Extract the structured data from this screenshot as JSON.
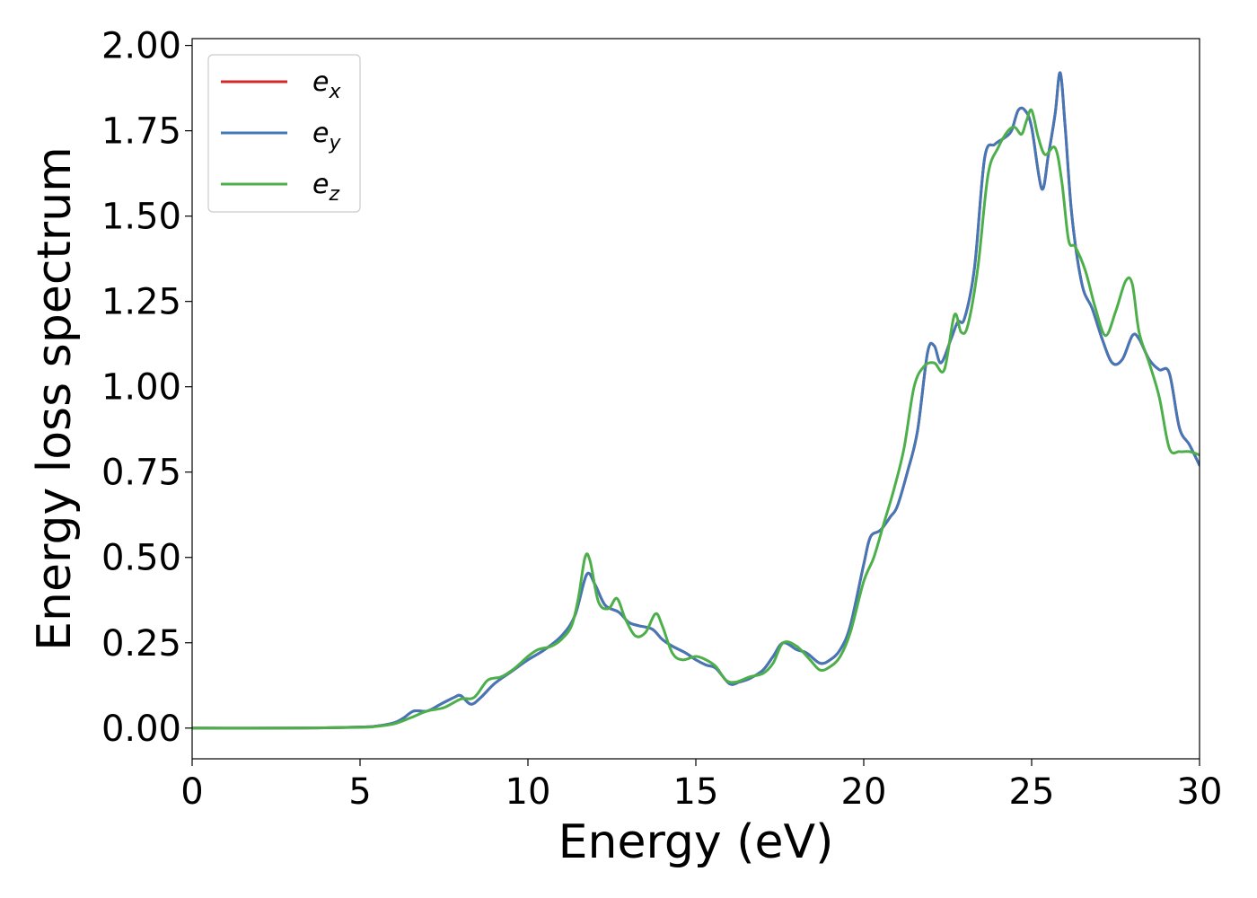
{
  "chart_data": {
    "type": "line",
    "xlabel": "Energy (eV)",
    "ylabel": "Energy loss spectrum",
    "xlim": [
      0,
      30
    ],
    "ylim": [
      -0.09,
      2.02
    ],
    "xticks": [
      0,
      5,
      10,
      15,
      20,
      25,
      30
    ],
    "xtick_labels": [
      "0",
      "5",
      "10",
      "15",
      "20",
      "25",
      "30"
    ],
    "yticks": [
      0.0,
      0.25,
      0.5,
      0.75,
      1.0,
      1.25,
      1.5,
      1.75,
      2.0
    ],
    "ytick_labels": [
      "0.00",
      "0.25",
      "0.50",
      "0.75",
      "1.00",
      "1.25",
      "1.50",
      "1.75",
      "2.00"
    ],
    "grid": false,
    "legend_position": "top-left",
    "series": [
      {
        "name": "e",
        "subscript": "x",
        "color": "#d62728",
        "x": [
          0,
          3,
          5,
          5.5,
          6,
          6.3,
          6.6,
          7.0,
          7.4,
          7.8,
          8.0,
          8.3,
          8.6,
          9.0,
          9.5,
          10.0,
          10.5,
          11.0,
          11.4,
          11.75,
          12.0,
          12.3,
          12.7,
          13.0,
          13.3,
          13.7,
          14.0,
          14.3,
          14.7,
          15.0,
          15.3,
          15.6,
          16.0,
          16.3,
          16.6,
          17.0,
          17.3,
          17.6,
          18.0,
          18.3,
          18.7,
          19.0,
          19.3,
          19.6,
          20.0,
          20.2,
          20.5,
          20.8,
          21.0,
          21.3,
          21.6,
          21.9,
          22.1,
          22.3,
          22.6,
          22.8,
          23.0,
          23.3,
          23.6,
          23.9,
          24.2,
          24.4,
          24.6,
          24.8,
          25.0,
          25.3,
          25.5,
          25.7,
          25.85,
          26.0,
          26.2,
          26.5,
          26.8,
          27.1,
          27.4,
          27.7,
          28.0,
          28.2,
          28.5,
          28.8,
          29.1,
          29.4,
          29.7,
          30.0
        ],
        "values": [
          0.0,
          0.0,
          0.003,
          0.006,
          0.015,
          0.03,
          0.05,
          0.05,
          0.07,
          0.09,
          0.095,
          0.07,
          0.09,
          0.13,
          0.165,
          0.2,
          0.23,
          0.27,
          0.33,
          0.45,
          0.42,
          0.36,
          0.34,
          0.31,
          0.3,
          0.29,
          0.26,
          0.24,
          0.22,
          0.2,
          0.185,
          0.175,
          0.13,
          0.135,
          0.145,
          0.17,
          0.21,
          0.25,
          0.23,
          0.22,
          0.19,
          0.2,
          0.23,
          0.3,
          0.48,
          0.56,
          0.58,
          0.62,
          0.65,
          0.75,
          0.87,
          1.1,
          1.12,
          1.07,
          1.14,
          1.19,
          1.2,
          1.35,
          1.67,
          1.71,
          1.73,
          1.75,
          1.81,
          1.81,
          1.76,
          1.58,
          1.68,
          1.8,
          1.92,
          1.76,
          1.5,
          1.3,
          1.23,
          1.14,
          1.07,
          1.08,
          1.15,
          1.14,
          1.08,
          1.05,
          1.04,
          0.88,
          0.83,
          0.77
        ]
      },
      {
        "name": "e",
        "subscript": "y",
        "color": "#4477b8",
        "x": [
          0,
          3,
          5,
          5.5,
          6,
          6.3,
          6.6,
          7.0,
          7.4,
          7.8,
          8.0,
          8.3,
          8.6,
          9.0,
          9.5,
          10.0,
          10.5,
          11.0,
          11.4,
          11.75,
          12.0,
          12.3,
          12.7,
          13.0,
          13.3,
          13.7,
          14.0,
          14.3,
          14.7,
          15.0,
          15.3,
          15.6,
          16.0,
          16.3,
          16.6,
          17.0,
          17.3,
          17.6,
          18.0,
          18.3,
          18.7,
          19.0,
          19.3,
          19.6,
          20.0,
          20.2,
          20.5,
          20.8,
          21.0,
          21.3,
          21.6,
          21.9,
          22.1,
          22.3,
          22.6,
          22.8,
          23.0,
          23.3,
          23.6,
          23.9,
          24.2,
          24.4,
          24.6,
          24.8,
          25.0,
          25.3,
          25.5,
          25.7,
          25.85,
          26.0,
          26.2,
          26.5,
          26.8,
          27.1,
          27.4,
          27.7,
          28.0,
          28.2,
          28.5,
          28.8,
          29.1,
          29.4,
          29.7,
          30.0
        ],
        "values": [
          0.0,
          0.0,
          0.003,
          0.006,
          0.015,
          0.03,
          0.05,
          0.05,
          0.07,
          0.09,
          0.095,
          0.07,
          0.09,
          0.13,
          0.165,
          0.2,
          0.23,
          0.27,
          0.33,
          0.45,
          0.42,
          0.36,
          0.34,
          0.31,
          0.3,
          0.29,
          0.26,
          0.24,
          0.22,
          0.2,
          0.185,
          0.175,
          0.13,
          0.135,
          0.145,
          0.17,
          0.21,
          0.25,
          0.23,
          0.22,
          0.19,
          0.2,
          0.23,
          0.3,
          0.48,
          0.56,
          0.58,
          0.62,
          0.65,
          0.75,
          0.87,
          1.1,
          1.12,
          1.07,
          1.14,
          1.19,
          1.2,
          1.35,
          1.67,
          1.71,
          1.73,
          1.75,
          1.81,
          1.81,
          1.76,
          1.58,
          1.68,
          1.8,
          1.92,
          1.76,
          1.5,
          1.3,
          1.23,
          1.14,
          1.07,
          1.08,
          1.15,
          1.14,
          1.08,
          1.05,
          1.04,
          0.88,
          0.83,
          0.77
        ]
      },
      {
        "name": "e",
        "subscript": "z",
        "color": "#4daf4a",
        "x": [
          0,
          3,
          5,
          5.5,
          6,
          6.5,
          7.0,
          7.5,
          8.0,
          8.4,
          8.8,
          9.2,
          9.6,
          10.0,
          10.3,
          10.7,
          11.0,
          11.3,
          11.5,
          11.7,
          11.85,
          12.1,
          12.4,
          12.65,
          12.9,
          13.2,
          13.5,
          13.8,
          14.0,
          14.3,
          14.6,
          15.0,
          15.3,
          15.6,
          15.9,
          16.2,
          16.6,
          17.0,
          17.3,
          17.6,
          18.0,
          18.4,
          18.7,
          19.0,
          19.3,
          19.6,
          20.0,
          20.3,
          20.6,
          20.9,
          21.2,
          21.5,
          21.8,
          22.1,
          22.4,
          22.7,
          22.9,
          23.1,
          23.4,
          23.7,
          24.0,
          24.3,
          24.5,
          24.7,
          24.85,
          25.0,
          25.2,
          25.4,
          25.7,
          25.9,
          26.1,
          26.3,
          26.6,
          26.9,
          27.2,
          27.5,
          27.8,
          28.0,
          28.2,
          28.5,
          28.8,
          29.1,
          29.4,
          29.7,
          30.0
        ],
        "values": [
          0.0,
          0.0,
          0.002,
          0.005,
          0.012,
          0.03,
          0.05,
          0.06,
          0.085,
          0.09,
          0.14,
          0.15,
          0.175,
          0.21,
          0.23,
          0.24,
          0.26,
          0.3,
          0.38,
          0.5,
          0.49,
          0.37,
          0.35,
          0.38,
          0.32,
          0.27,
          0.28,
          0.335,
          0.3,
          0.22,
          0.2,
          0.21,
          0.2,
          0.18,
          0.14,
          0.135,
          0.15,
          0.16,
          0.19,
          0.25,
          0.24,
          0.2,
          0.17,
          0.18,
          0.21,
          0.28,
          0.43,
          0.5,
          0.6,
          0.7,
          0.82,
          1.0,
          1.06,
          1.07,
          1.05,
          1.21,
          1.16,
          1.18,
          1.35,
          1.62,
          1.7,
          1.75,
          1.76,
          1.74,
          1.78,
          1.81,
          1.73,
          1.68,
          1.7,
          1.6,
          1.43,
          1.41,
          1.34,
          1.23,
          1.15,
          1.22,
          1.31,
          1.3,
          1.16,
          1.07,
          0.97,
          0.82,
          0.81,
          0.81,
          0.8
        ]
      }
    ]
  }
}
